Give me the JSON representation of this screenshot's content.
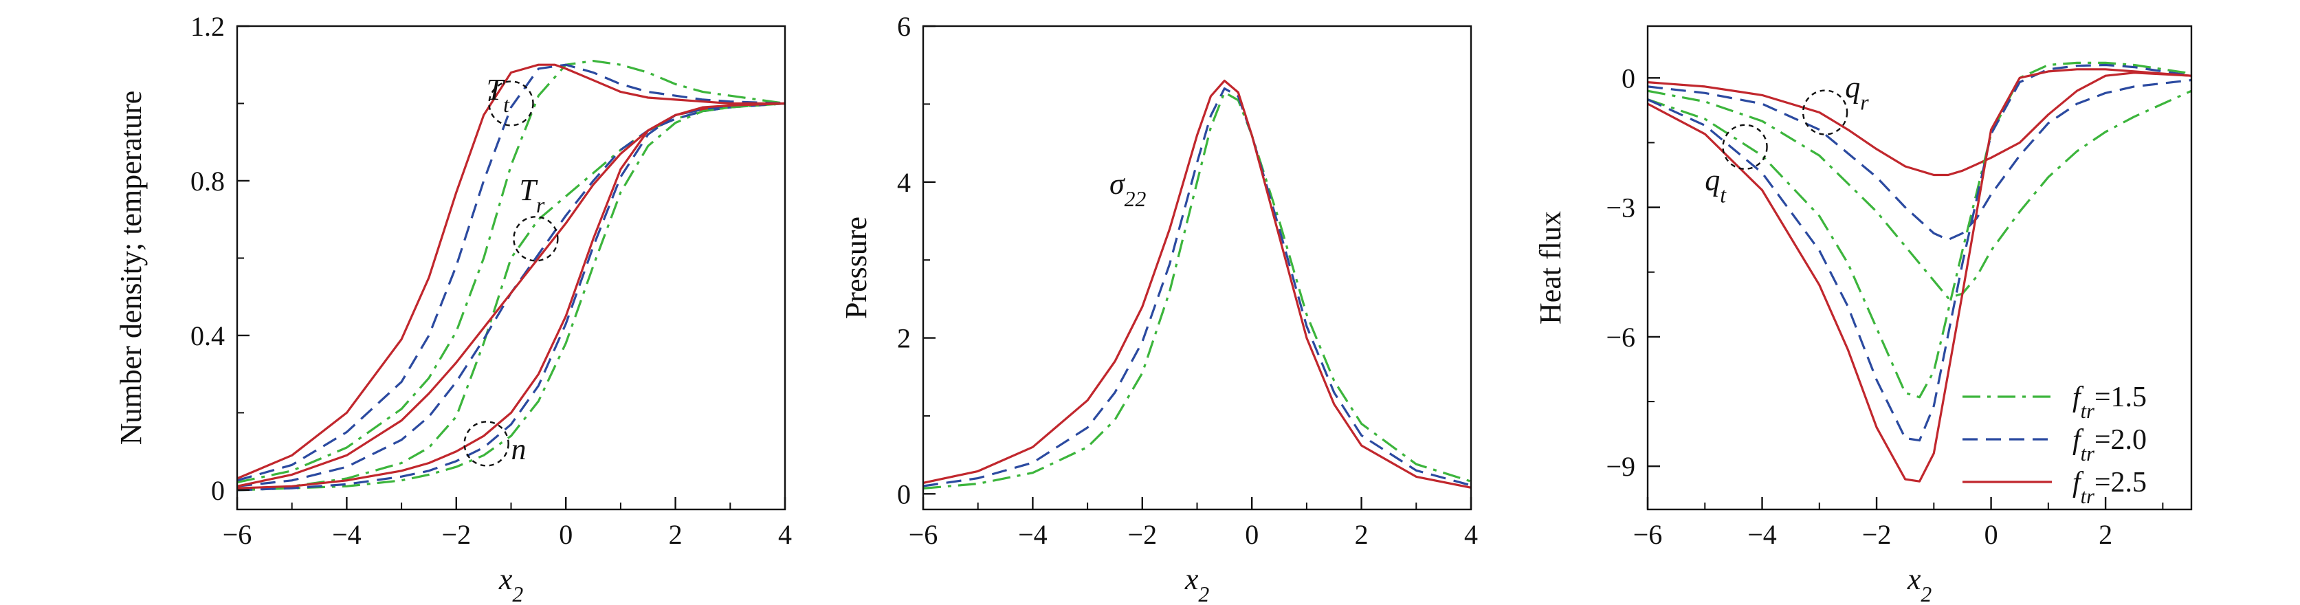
{
  "chart_data": [
    {
      "type": "line",
      "title": "",
      "xlabel": "x2",
      "ylabel": "Number density; temperature",
      "xlim": [
        -6,
        4
      ],
      "ylim": [
        -0.05,
        1.2
      ],
      "xticks": [
        -6,
        -4,
        -2,
        0,
        2,
        4
      ],
      "yticks": [
        0,
        0.4,
        0.8,
        1.2
      ],
      "xtick_labels": [
        "−6",
        "−4",
        "−2",
        "0",
        "2",
        "4"
      ],
      "ytick_labels": [
        "0",
        "0.4",
        "0.8",
        "1.2"
      ],
      "annotations": [
        {
          "text": "T",
          "sub": "t",
          "x": -1.45,
          "y": 1.01
        },
        {
          "text": "T",
          "sub": "r",
          "x": -0.85,
          "y": 0.75
        },
        {
          "text": "n",
          "x": -1.0,
          "y": 0.08
        }
      ],
      "circles": [
        {
          "x": -1.0,
          "y": 1.0
        },
        {
          "x": -0.55,
          "y": 0.65
        },
        {
          "x": -1.45,
          "y": 0.12
        }
      ],
      "series": [
        {
          "group": "Tt",
          "style": "dashdot",
          "x": [
            -6,
            -5,
            -4,
            -3,
            -2.5,
            -2,
            -1.5,
            -1,
            -0.5,
            0,
            0.5,
            1,
            1.5,
            2,
            2.5,
            3,
            4
          ],
          "y": [
            0.02,
            0.05,
            0.11,
            0.21,
            0.29,
            0.41,
            0.6,
            0.84,
            1.02,
            1.1,
            1.11,
            1.1,
            1.08,
            1.05,
            1.03,
            1.02,
            1.0
          ]
        },
        {
          "group": "Tt",
          "style": "dashed",
          "x": [
            -6,
            -5,
            -4,
            -3,
            -2.5,
            -2,
            -1.5,
            -1,
            -0.5,
            0,
            0.5,
            1,
            1.5,
            2,
            2.5,
            3,
            4
          ],
          "y": [
            0.025,
            0.065,
            0.15,
            0.28,
            0.4,
            0.58,
            0.8,
            0.99,
            1.09,
            1.1,
            1.08,
            1.05,
            1.03,
            1.02,
            1.01,
            1.005,
            1.0
          ]
        },
        {
          "group": "Tt",
          "style": "solid",
          "x": [
            -6,
            -5,
            -4,
            -3,
            -2.5,
            -2,
            -1.5,
            -1,
            -0.5,
            -0.2,
            0,
            0.5,
            1,
            1.5,
            2,
            2.5,
            3,
            4
          ],
          "y": [
            0.03,
            0.09,
            0.2,
            0.39,
            0.55,
            0.77,
            0.97,
            1.08,
            1.1,
            1.1,
            1.09,
            1.06,
            1.03,
            1.015,
            1.01,
            1.005,
            1.0,
            1.0
          ]
        },
        {
          "group": "Tr",
          "style": "dashdot",
          "x": [
            -6,
            -5,
            -4,
            -3,
            -2.5,
            -2,
            -1.5,
            -1,
            -0.5,
            0,
            0.5,
            1,
            1.5,
            2,
            2.5,
            3,
            4
          ],
          "y": [
            0.0,
            0.01,
            0.03,
            0.07,
            0.11,
            0.19,
            0.38,
            0.6,
            0.7,
            0.76,
            0.82,
            0.88,
            0.93,
            0.96,
            0.98,
            0.99,
            1.0
          ]
        },
        {
          "group": "Tr",
          "style": "dashed",
          "x": [
            -6,
            -5,
            -4,
            -3,
            -2.5,
            -2,
            -1.5,
            -1,
            -0.5,
            0,
            0.5,
            1,
            1.5,
            2,
            2.5,
            3,
            4
          ],
          "y": [
            0.01,
            0.025,
            0.06,
            0.13,
            0.19,
            0.28,
            0.39,
            0.51,
            0.61,
            0.71,
            0.8,
            0.88,
            0.93,
            0.96,
            0.98,
            0.99,
            1.0
          ]
        },
        {
          "group": "Tr",
          "style": "solid",
          "x": [
            -6,
            -5,
            -4,
            -3,
            -2.5,
            -2,
            -1.5,
            -1,
            -0.5,
            0,
            0.5,
            1,
            1.5,
            2,
            2.5,
            3,
            4
          ],
          "y": [
            0.01,
            0.04,
            0.09,
            0.18,
            0.25,
            0.33,
            0.42,
            0.51,
            0.6,
            0.69,
            0.79,
            0.87,
            0.93,
            0.97,
            0.985,
            0.995,
            1.0
          ]
        },
        {
          "group": "n",
          "style": "dashdot",
          "x": [
            -6,
            -5,
            -4,
            -3,
            -2.5,
            -2,
            -1.5,
            -1,
            -0.5,
            0,
            0.5,
            1,
            1.5,
            2,
            2.5,
            3,
            4
          ],
          "y": [
            0.0,
            0.005,
            0.01,
            0.025,
            0.04,
            0.06,
            0.09,
            0.14,
            0.23,
            0.38,
            0.58,
            0.77,
            0.89,
            0.95,
            0.98,
            0.99,
            1.0
          ]
        },
        {
          "group": "n",
          "style": "dashed",
          "x": [
            -6,
            -5,
            -4,
            -3,
            -2.5,
            -2,
            -1.5,
            -1,
            -0.5,
            0,
            0.5,
            1,
            1.5,
            2,
            2.5,
            3,
            4
          ],
          "y": [
            0.0,
            0.005,
            0.015,
            0.035,
            0.05,
            0.075,
            0.11,
            0.17,
            0.27,
            0.43,
            0.63,
            0.81,
            0.92,
            0.97,
            0.985,
            0.995,
            1.0
          ]
        },
        {
          "group": "n",
          "style": "solid",
          "x": [
            -6,
            -5,
            -4,
            -3,
            -2.5,
            -2,
            -1.5,
            -1,
            -0.5,
            0,
            0.5,
            1,
            1.5,
            2,
            2.5,
            3,
            4
          ],
          "y": [
            0.005,
            0.01,
            0.025,
            0.05,
            0.07,
            0.1,
            0.14,
            0.2,
            0.3,
            0.45,
            0.65,
            0.83,
            0.93,
            0.97,
            0.99,
            0.995,
            1.0
          ]
        }
      ]
    },
    {
      "type": "line",
      "title": "",
      "xlabel": "x2",
      "ylabel": "Pressure",
      "xlim": [
        -6,
        4
      ],
      "ylim": [
        -0.2,
        6
      ],
      "xticks": [
        -6,
        -4,
        -2,
        0,
        2,
        4
      ],
      "yticks": [
        0,
        2,
        4,
        6
      ],
      "xtick_labels": [
        "−6",
        "−4",
        "−2",
        "0",
        "2",
        "4"
      ],
      "ytick_labels": [
        "0",
        "2",
        "4",
        "6"
      ],
      "annotations": [
        {
          "text": "σ",
          "sub": "22",
          "x": -2.6,
          "y": 3.85
        }
      ],
      "series": [
        {
          "style": "dashdot",
          "x": [
            -6,
            -5,
            -4,
            -3,
            -2.5,
            -2,
            -1.5,
            -1,
            -0.75,
            -0.5,
            -0.25,
            0,
            0.5,
            1,
            1.5,
            2,
            3,
            4
          ],
          "y": [
            0.07,
            0.13,
            0.27,
            0.6,
            0.95,
            1.55,
            2.6,
            4.0,
            4.7,
            5.15,
            5.05,
            4.6,
            3.5,
            2.3,
            1.45,
            0.9,
            0.38,
            0.16
          ]
        },
        {
          "style": "dashed",
          "x": [
            -6,
            -5,
            -4,
            -3,
            -2.5,
            -2,
            -1.5,
            -1,
            -0.75,
            -0.5,
            -0.25,
            0,
            0.5,
            1,
            1.5,
            2,
            3,
            4
          ],
          "y": [
            0.1,
            0.2,
            0.4,
            0.85,
            1.3,
            1.95,
            2.95,
            4.25,
            4.85,
            5.2,
            5.1,
            4.6,
            3.4,
            2.15,
            1.3,
            0.75,
            0.3,
            0.11
          ]
        },
        {
          "style": "solid",
          "x": [
            -6,
            -5,
            -4,
            -3,
            -2.5,
            -2,
            -1.5,
            -1,
            -0.75,
            -0.5,
            -0.25,
            0,
            0.5,
            1,
            1.5,
            2,
            3,
            4
          ],
          "y": [
            0.14,
            0.29,
            0.6,
            1.2,
            1.7,
            2.4,
            3.4,
            4.6,
            5.1,
            5.3,
            5.15,
            4.6,
            3.3,
            2.0,
            1.15,
            0.62,
            0.22,
            0.08
          ]
        }
      ]
    },
    {
      "type": "line",
      "title": "",
      "xlabel": "x2",
      "ylabel": "Heat flux",
      "xlim": [
        -6,
        3.5
      ],
      "ylim": [
        -10,
        1.2
      ],
      "xticks": [
        -6,
        -4,
        -2,
        0,
        2
      ],
      "yticks": [
        0,
        -3,
        -6,
        -9
      ],
      "xtick_labels": [
        "−6",
        "−4",
        "−2",
        "0",
        "2"
      ],
      "ytick_labels": [
        "0",
        "−3",
        "−6",
        "−9"
      ],
      "annotations": [
        {
          "text": "q",
          "sub": "r",
          "x": -2.55,
          "y": -0.45
        },
        {
          "text": "q",
          "sub": "t",
          "x": -5.0,
          "y": -2.6
        }
      ],
      "circles": [
        {
          "x": -2.9,
          "y": -0.8
        },
        {
          "x": -4.3,
          "y": -1.6
        }
      ],
      "legend": {
        "position": "bottom-right",
        "entries": [
          {
            "name": "ftr=1.5",
            "base": "f",
            "sub": "tr",
            "value": "=1.5",
            "style": "dashdot"
          },
          {
            "name": "ftr=2.0",
            "base": "f",
            "sub": "tr",
            "value": "=2.0",
            "style": "dashed"
          },
          {
            "name": "ftr=2.5",
            "base": "f",
            "sub": "tr",
            "value": "=2.5",
            "style": "solid"
          }
        ]
      },
      "series": [
        {
          "group": "qr",
          "style": "dashdot",
          "x": [
            -6,
            -5,
            -4,
            -3,
            -2,
            -1.5,
            -1,
            -0.75,
            -0.5,
            -0.25,
            0,
            0.5,
            1,
            1.5,
            2,
            2.5,
            3.5
          ],
          "y": [
            -0.3,
            -0.55,
            -1.0,
            -1.8,
            -3.1,
            -3.9,
            -4.7,
            -5.1,
            -5.0,
            -4.6,
            -4.0,
            -3.1,
            -2.3,
            -1.7,
            -1.25,
            -0.9,
            -0.3
          ]
        },
        {
          "group": "qr",
          "style": "dashed",
          "x": [
            -6,
            -5,
            -4,
            -3,
            -2,
            -1.5,
            -1,
            -0.75,
            -0.5,
            -0.25,
            0,
            0.5,
            1,
            1.5,
            2,
            2.5,
            3.5
          ],
          "y": [
            -0.2,
            -0.35,
            -0.6,
            -1.2,
            -2.3,
            -3.0,
            -3.6,
            -3.75,
            -3.6,
            -3.25,
            -2.7,
            -1.8,
            -1.05,
            -0.6,
            -0.35,
            -0.2,
            -0.05
          ]
        },
        {
          "group": "qr",
          "style": "solid",
          "x": [
            -6,
            -5,
            -4,
            -3,
            -2.5,
            -2,
            -1.5,
            -1,
            -0.75,
            -0.5,
            -0.25,
            0,
            0.5,
            1,
            1.5,
            2,
            2.5,
            3.5
          ],
          "y": [
            -0.1,
            -0.2,
            -0.4,
            -0.8,
            -1.2,
            -1.65,
            -2.05,
            -2.25,
            -2.25,
            -2.15,
            -2.0,
            -1.85,
            -1.5,
            -0.85,
            -0.3,
            0.05,
            0.12,
            0.05
          ]
        },
        {
          "group": "qt",
          "style": "dashdot",
          "x": [
            -6,
            -5,
            -4,
            -3,
            -2.5,
            -2,
            -1.5,
            -1.25,
            -1,
            -0.5,
            0,
            0.5,
            1,
            1.5,
            2,
            2.5,
            3.5
          ],
          "y": [
            -0.5,
            -0.95,
            -1.8,
            -3.2,
            -4.3,
            -5.8,
            -7.3,
            -7.4,
            -6.8,
            -4.0,
            -1.3,
            0.0,
            0.3,
            0.35,
            0.35,
            0.3,
            0.1
          ]
        },
        {
          "group": "qt",
          "style": "dashed",
          "x": [
            -6,
            -5,
            -4,
            -3,
            -2.5,
            -2,
            -1.5,
            -1.25,
            -1,
            -0.5,
            0,
            0.5,
            1,
            1.5,
            2,
            2.5,
            3.5
          ],
          "y": [
            -0.5,
            -1.1,
            -2.2,
            -4.0,
            -5.3,
            -7.0,
            -8.35,
            -8.4,
            -7.6,
            -4.3,
            -1.3,
            -0.1,
            0.2,
            0.28,
            0.3,
            0.25,
            0.05
          ]
        },
        {
          "group": "qt",
          "style": "solid",
          "x": [
            -6,
            -5,
            -4,
            -3,
            -2.5,
            -2,
            -1.5,
            -1.25,
            -1,
            -0.5,
            0,
            0.5,
            1,
            1.5,
            2,
            2.5,
            3.5
          ],
          "y": [
            -0.6,
            -1.3,
            -2.6,
            -4.8,
            -6.3,
            -8.1,
            -9.3,
            -9.35,
            -8.7,
            -5.0,
            -1.2,
            0.0,
            0.15,
            0.2,
            0.2,
            0.15,
            0.05
          ]
        }
      ]
    }
  ],
  "colors": {
    "dashdot": "#3cb53c",
    "dashed": "#2b4aa0",
    "solid": "#c1272d",
    "axis": "#111111"
  }
}
